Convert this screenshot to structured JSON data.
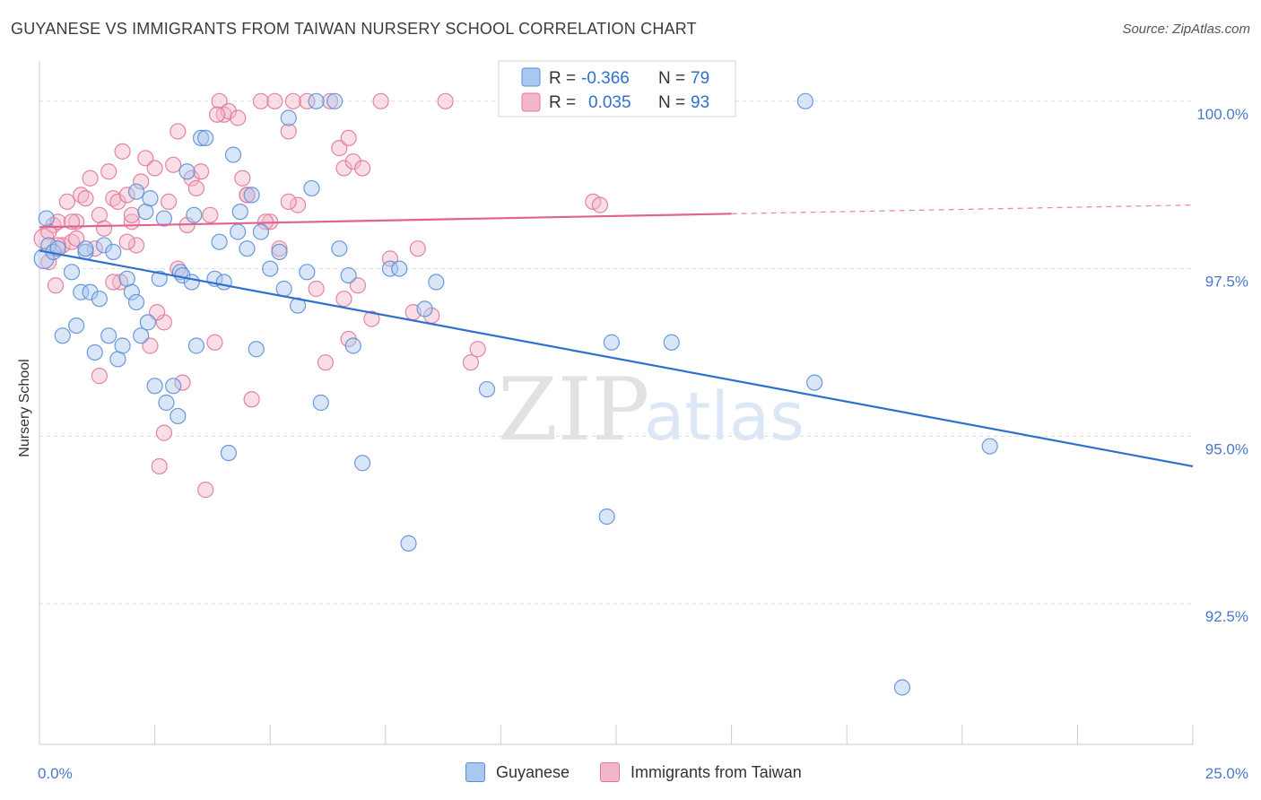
{
  "header": {
    "title": "GUYANESE VS IMMIGRANTS FROM TAIWAN NURSERY SCHOOL CORRELATION CHART",
    "source": "Source: ZipAtlas.com"
  },
  "watermark": {
    "zip": "ZIP",
    "atlas": "atlas"
  },
  "colors": {
    "blue_fill": "#a9c8f0",
    "blue_stroke": "#5b8fd6",
    "blue_line": "#2f6fce",
    "pink_fill": "#f4b6c9",
    "pink_stroke": "#e07898",
    "pink_line": "#e0658d",
    "tick_label": "#4a79c7",
    "grid": "#dddddd"
  },
  "stats_legend": {
    "rows": [
      {
        "series": "Guyanese",
        "r_label": "R =",
        "r_value": "-0.366",
        "n_label": "N =",
        "n_value": "79"
      },
      {
        "series": "Immigrants from Taiwan",
        "r_label": "R =",
        "r_value": "0.035",
        "n_label": "N =",
        "n_value": "93"
      }
    ]
  },
  "chart_data": {
    "type": "scatter",
    "title": "GUYANESE VS IMMIGRANTS FROM TAIWAN NURSERY SCHOOL CORRELATION CHART",
    "xlabel": "",
    "ylabel": "Nursery School",
    "xlim": [
      0,
      25
    ],
    "ylim": [
      90.4,
      100.6
    ],
    "x_tick_labels": [
      "0.0%",
      "25.0%"
    ],
    "y_ticks": [
      92.5,
      95.0,
      97.5,
      100.0
    ],
    "y_tick_labels": [
      "92.5%",
      "95.0%",
      "97.5%",
      "100.0%"
    ],
    "grid": true,
    "legend": "bottom-center",
    "series": [
      {
        "name": "Guyanese",
        "trend": {
          "x": [
            0,
            25
          ],
          "y": [
            97.77,
            94.55
          ],
          "style": "solid"
        },
        "points": [
          {
            "x": 0.1,
            "y": 97.65,
            "big": true
          },
          {
            "x": 0.15,
            "y": 98.25
          },
          {
            "x": 0.2,
            "y": 97.85
          },
          {
            "x": 0.3,
            "y": 97.75
          },
          {
            "x": 0.4,
            "y": 97.8
          },
          {
            "x": 0.5,
            "y": 96.5
          },
          {
            "x": 0.7,
            "y": 97.45
          },
          {
            "x": 0.8,
            "y": 96.65
          },
          {
            "x": 0.9,
            "y": 97.15
          },
          {
            "x": 1.0,
            "y": 97.75
          },
          {
            "x": 1.1,
            "y": 97.15
          },
          {
            "x": 1.2,
            "y": 96.25
          },
          {
            "x": 1.3,
            "y": 97.05
          },
          {
            "x": 1.4,
            "y": 97.85
          },
          {
            "x": 1.5,
            "y": 96.5
          },
          {
            "x": 1.6,
            "y": 97.75
          },
          {
            "x": 1.7,
            "y": 96.15
          },
          {
            "x": 1.8,
            "y": 96.35
          },
          {
            "x": 1.9,
            "y": 97.35
          },
          {
            "x": 2.0,
            "y": 97.15
          },
          {
            "x": 2.1,
            "y": 98.65
          },
          {
            "x": 2.2,
            "y": 96.5
          },
          {
            "x": 2.3,
            "y": 98.35
          },
          {
            "x": 2.35,
            "y": 96.7
          },
          {
            "x": 2.4,
            "y": 98.55
          },
          {
            "x": 2.5,
            "y": 95.75
          },
          {
            "x": 2.6,
            "y": 97.35
          },
          {
            "x": 2.7,
            "y": 98.25
          },
          {
            "x": 2.75,
            "y": 95.5
          },
          {
            "x": 2.9,
            "y": 95.75
          },
          {
            "x": 3.0,
            "y": 95.3
          },
          {
            "x": 3.05,
            "y": 97.45
          },
          {
            "x": 3.1,
            "y": 97.4
          },
          {
            "x": 3.2,
            "y": 98.95
          },
          {
            "x": 3.3,
            "y": 97.3
          },
          {
            "x": 3.35,
            "y": 98.3
          },
          {
            "x": 3.4,
            "y": 96.35
          },
          {
            "x": 3.5,
            "y": 99.45
          },
          {
            "x": 3.6,
            "y": 99.45
          },
          {
            "x": 3.8,
            "y": 97.35
          },
          {
            "x": 3.9,
            "y": 97.9
          },
          {
            "x": 4.0,
            "y": 97.3
          },
          {
            "x": 4.1,
            "y": 94.75
          },
          {
            "x": 4.2,
            "y": 99.2
          },
          {
            "x": 4.3,
            "y": 98.05
          },
          {
            "x": 4.35,
            "y": 98.35
          },
          {
            "x": 4.5,
            "y": 97.8
          },
          {
            "x": 4.6,
            "y": 98.6
          },
          {
            "x": 4.7,
            "y": 96.3
          },
          {
            "x": 4.8,
            "y": 98.05
          },
          {
            "x": 5.0,
            "y": 97.5
          },
          {
            "x": 5.2,
            "y": 97.75
          },
          {
            "x": 5.3,
            "y": 97.2
          },
          {
            "x": 5.4,
            "y": 99.75
          },
          {
            "x": 5.6,
            "y": 96.95
          },
          {
            "x": 5.8,
            "y": 97.45
          },
          {
            "x": 5.9,
            "y": 98.7
          },
          {
            "x": 6.0,
            "y": 100.0
          },
          {
            "x": 6.1,
            "y": 95.5
          },
          {
            "x": 6.4,
            "y": 100.0
          },
          {
            "x": 6.5,
            "y": 97.8
          },
          {
            "x": 6.7,
            "y": 97.4
          },
          {
            "x": 6.8,
            "y": 96.35
          },
          {
            "x": 7.0,
            "y": 94.6
          },
          {
            "x": 7.6,
            "y": 97.5
          },
          {
            "x": 7.8,
            "y": 97.5
          },
          {
            "x": 8.0,
            "y": 93.4
          },
          {
            "x": 8.6,
            "y": 97.3
          },
          {
            "x": 9.7,
            "y": 95.7
          },
          {
            "x": 12.3,
            "y": 93.8
          },
          {
            "x": 12.4,
            "y": 96.4
          },
          {
            "x": 13.7,
            "y": 96.4
          },
          {
            "x": 16.6,
            "y": 100.0
          },
          {
            "x": 16.8,
            "y": 95.8
          },
          {
            "x": 18.7,
            "y": 91.25
          },
          {
            "x": 20.6,
            "y": 94.85
          },
          {
            "x": 8.35,
            "y": 96.9
          },
          {
            "x": 2.1,
            "y": 97.0
          },
          {
            "x": 1.0,
            "y": 97.8
          }
        ]
      },
      {
        "name": "Immigrants from Taiwan",
        "trend": {
          "x": [
            0,
            15,
            25
          ],
          "y": [
            98.12,
            98.32,
            98.45
          ],
          "style": "solid-then-dashed"
        },
        "points": [
          {
            "x": 0.1,
            "y": 97.95,
            "big": true
          },
          {
            "x": 0.2,
            "y": 97.6
          },
          {
            "x": 0.3,
            "y": 98.15
          },
          {
            "x": 0.35,
            "y": 97.25
          },
          {
            "x": 0.4,
            "y": 98.2
          },
          {
            "x": 0.5,
            "y": 97.85
          },
          {
            "x": 0.6,
            "y": 98.5
          },
          {
            "x": 0.7,
            "y": 97.9
          },
          {
            "x": 0.8,
            "y": 98.2
          },
          {
            "x": 0.9,
            "y": 98.6
          },
          {
            "x": 1.0,
            "y": 98.55
          },
          {
            "x": 1.1,
            "y": 98.85
          },
          {
            "x": 1.2,
            "y": 97.8
          },
          {
            "x": 1.3,
            "y": 98.3
          },
          {
            "x": 1.4,
            "y": 98.1
          },
          {
            "x": 1.5,
            "y": 98.95
          },
          {
            "x": 1.6,
            "y": 98.55
          },
          {
            "x": 1.7,
            "y": 98.5
          },
          {
            "x": 1.75,
            "y": 97.3
          },
          {
            "x": 1.8,
            "y": 99.25
          },
          {
            "x": 1.9,
            "y": 98.6
          },
          {
            "x": 2.0,
            "y": 98.2
          },
          {
            "x": 2.1,
            "y": 97.85
          },
          {
            "x": 2.2,
            "y": 98.8
          },
          {
            "x": 2.3,
            "y": 99.15
          },
          {
            "x": 2.4,
            "y": 96.35
          },
          {
            "x": 2.5,
            "y": 99.0
          },
          {
            "x": 2.6,
            "y": 94.55
          },
          {
            "x": 2.7,
            "y": 96.7
          },
          {
            "x": 2.8,
            "y": 98.5
          },
          {
            "x": 2.9,
            "y": 99.05
          },
          {
            "x": 3.0,
            "y": 99.55
          },
          {
            "x": 3.1,
            "y": 95.8
          },
          {
            "x": 3.2,
            "y": 98.15
          },
          {
            "x": 3.3,
            "y": 98.85
          },
          {
            "x": 3.4,
            "y": 98.7
          },
          {
            "x": 3.5,
            "y": 98.95
          },
          {
            "x": 3.6,
            "y": 94.2
          },
          {
            "x": 3.7,
            "y": 98.3
          },
          {
            "x": 3.8,
            "y": 96.4
          },
          {
            "x": 3.9,
            "y": 100.0
          },
          {
            "x": 4.0,
            "y": 99.8
          },
          {
            "x": 4.1,
            "y": 99.85
          },
          {
            "x": 4.3,
            "y": 99.75
          },
          {
            "x": 4.4,
            "y": 98.85
          },
          {
            "x": 4.5,
            "y": 98.6
          },
          {
            "x": 4.6,
            "y": 95.55
          },
          {
            "x": 4.8,
            "y": 100.0
          },
          {
            "x": 5.0,
            "y": 98.2
          },
          {
            "x": 5.1,
            "y": 100.0
          },
          {
            "x": 5.2,
            "y": 97.8
          },
          {
            "x": 5.4,
            "y": 99.55
          },
          {
            "x": 5.5,
            "y": 100.0
          },
          {
            "x": 5.6,
            "y": 98.45
          },
          {
            "x": 5.8,
            "y": 100.0
          },
          {
            "x": 6.0,
            "y": 97.2
          },
          {
            "x": 6.2,
            "y": 96.1
          },
          {
            "x": 6.3,
            "y": 100.0
          },
          {
            "x": 6.5,
            "y": 99.3
          },
          {
            "x": 6.6,
            "y": 99.0
          },
          {
            "x": 6.7,
            "y": 99.45
          },
          {
            "x": 6.8,
            "y": 99.1
          },
          {
            "x": 6.9,
            "y": 97.25
          },
          {
            "x": 7.0,
            "y": 99.0
          },
          {
            "x": 7.2,
            "y": 96.75
          },
          {
            "x": 7.4,
            "y": 100.0
          },
          {
            "x": 7.6,
            "y": 97.65
          },
          {
            "x": 8.1,
            "y": 96.85
          },
          {
            "x": 8.2,
            "y": 97.8
          },
          {
            "x": 8.5,
            "y": 96.8
          },
          {
            "x": 9.35,
            "y": 96.1
          },
          {
            "x": 9.5,
            "y": 96.3
          },
          {
            "x": 8.8,
            "y": 100.0
          },
          {
            "x": 11.9,
            "y": 100.0
          },
          {
            "x": 12.0,
            "y": 98.5
          },
          {
            "x": 12.15,
            "y": 98.45
          },
          {
            "x": 6.7,
            "y": 96.45
          },
          {
            "x": 1.3,
            "y": 95.9
          },
          {
            "x": 2.7,
            "y": 95.05
          },
          {
            "x": 1.6,
            "y": 97.3
          },
          {
            "x": 0.7,
            "y": 98.2
          },
          {
            "x": 0.8,
            "y": 97.95
          },
          {
            "x": 0.2,
            "y": 98.05
          },
          {
            "x": 0.4,
            "y": 97.85
          },
          {
            "x": 1.9,
            "y": 97.9
          },
          {
            "x": 2.0,
            "y": 98.3
          },
          {
            "x": 3.0,
            "y": 97.5
          },
          {
            "x": 4.5,
            "y": 98.6
          },
          {
            "x": 5.4,
            "y": 98.5
          },
          {
            "x": 6.6,
            "y": 97.05
          },
          {
            "x": 3.85,
            "y": 99.8
          },
          {
            "x": 2.55,
            "y": 96.85
          },
          {
            "x": 4.9,
            "y": 98.2
          }
        ]
      }
    ]
  }
}
